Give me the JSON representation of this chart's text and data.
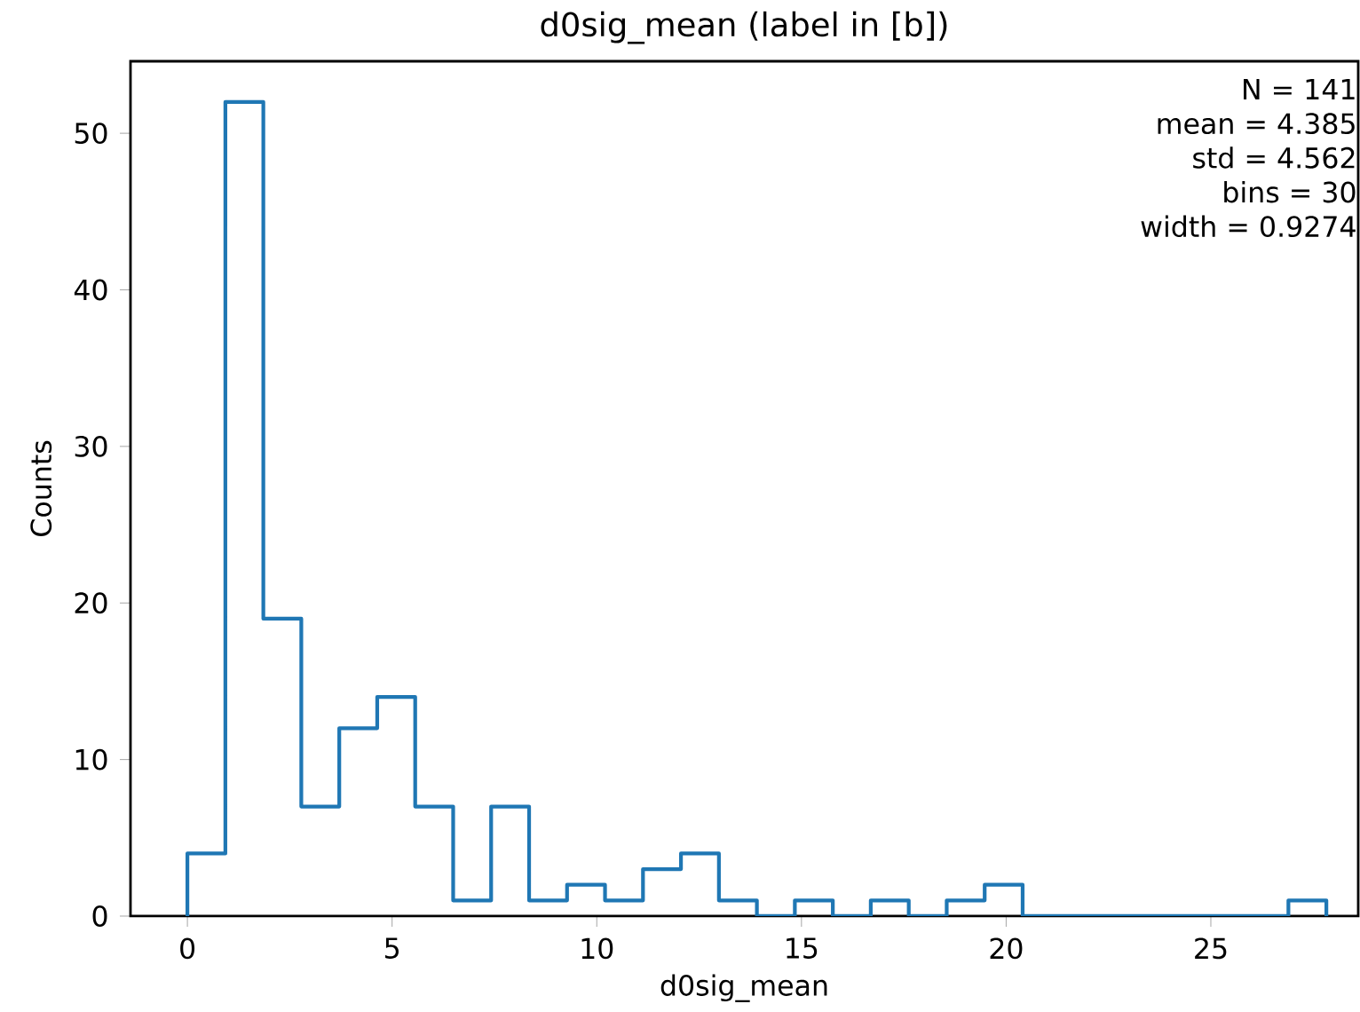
{
  "chart_data": {
    "type": "histogram",
    "title": "d0sig_mean (label in [b])",
    "xlabel": "d0sig_mean",
    "ylabel": "Counts",
    "bins": [
      0,
      0.9274,
      1.8548,
      2.7822,
      3.7096,
      4.637,
      5.5644,
      6.4918,
      7.4192,
      8.3466,
      9.274,
      10.2014,
      11.1288,
      12.0562,
      12.9836,
      13.911,
      14.8384,
      15.7658,
      16.6932,
      17.6206,
      18.548,
      19.4754,
      20.4028,
      21.3302,
      22.2576,
      23.185,
      24.1124,
      25.0398,
      25.9672,
      26.8946,
      27.822
    ],
    "values": [
      4,
      52,
      19,
      7,
      12,
      14,
      7,
      1,
      7,
      1,
      2,
      1,
      3,
      4,
      1,
      0,
      1,
      0,
      1,
      0,
      1,
      2,
      0,
      0,
      0,
      0,
      0,
      0,
      0,
      1
    ],
    "color": "#1f77b4",
    "xlim": [
      -1.39,
      28.6
    ],
    "ylim": [
      0,
      54.6
    ],
    "xticks": [
      0,
      5,
      10,
      15,
      20,
      25
    ],
    "yticks": [
      0,
      10,
      20,
      30,
      40,
      50
    ],
    "annotations": [
      "N = 141",
      "mean = 4.385",
      "std = 4.562",
      "bins = 30",
      "width = 0.9274"
    ],
    "grid": false
  }
}
